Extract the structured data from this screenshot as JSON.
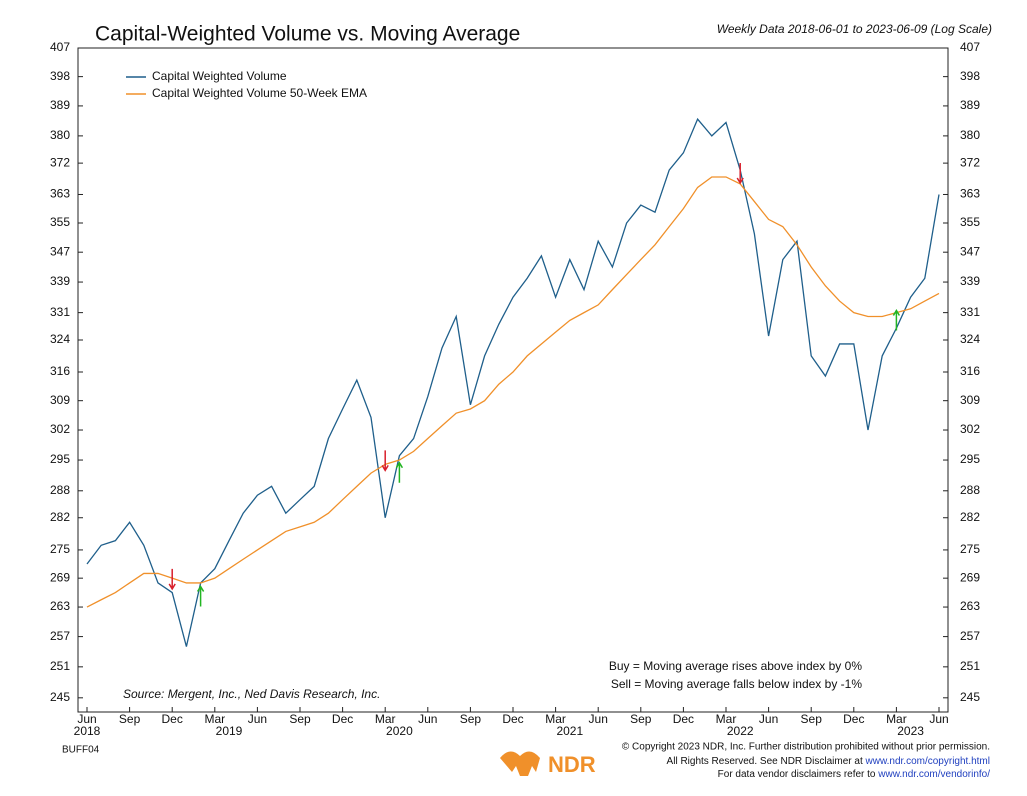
{
  "chart_data": {
    "type": "line",
    "title": "Capital-Weighted Volume vs. Moving Average",
    "subtitle": "Weekly Data 2018-06-01 to 2023-06-09 (Log Scale)",
    "log_scale": true,
    "x": [
      "2018-06",
      "2018-07",
      "2018-08",
      "2018-09",
      "2018-10",
      "2018-11",
      "2018-12",
      "2019-01",
      "2019-02",
      "2019-03",
      "2019-04",
      "2019-05",
      "2019-06",
      "2019-07",
      "2019-08",
      "2019-09",
      "2019-10",
      "2019-11",
      "2019-12",
      "2020-01",
      "2020-02",
      "2020-03",
      "2020-04",
      "2020-05",
      "2020-06",
      "2020-07",
      "2020-08",
      "2020-09",
      "2020-10",
      "2020-11",
      "2020-12",
      "2021-01",
      "2021-02",
      "2021-03",
      "2021-04",
      "2021-05",
      "2021-06",
      "2021-07",
      "2021-08",
      "2021-09",
      "2021-10",
      "2021-11",
      "2021-12",
      "2022-01",
      "2022-02",
      "2022-03",
      "2022-04",
      "2022-05",
      "2022-06",
      "2022-07",
      "2022-08",
      "2022-09",
      "2022-10",
      "2022-11",
      "2022-12",
      "2023-01",
      "2023-02",
      "2023-03",
      "2023-04",
      "2023-05",
      "2023-06"
    ],
    "series": [
      {
        "name": "Capital Weighted Volume",
        "color": "#1f5f8b",
        "values": [
          272,
          276,
          277,
          281,
          276,
          268,
          266,
          255,
          268,
          271,
          277,
          283,
          287,
          289,
          283,
          286,
          289,
          300,
          307,
          314,
          305,
          282,
          296,
          300,
          310,
          322,
          330,
          308,
          320,
          328,
          335,
          340,
          346,
          335,
          345,
          337,
          350,
          343,
          355,
          360,
          358,
          370,
          375,
          385,
          380,
          384,
          370,
          352,
          325,
          345,
          350,
          320,
          315,
          323,
          323,
          302,
          320,
          327,
          335,
          340,
          363
        ]
      },
      {
        "name": "Capital Weighted Volume 50-Week EMA",
        "color": "#f0902a",
        "values": [
          263,
          264.5,
          266,
          268,
          270,
          270,
          269,
          268,
          268,
          269,
          271,
          273,
          275,
          277,
          279,
          280,
          281,
          283,
          286,
          289,
          292,
          294,
          295,
          297,
          300,
          303,
          306,
          307,
          309,
          313,
          316,
          320,
          323,
          326,
          329,
          331,
          333,
          337,
          341,
          345,
          349,
          354,
          359,
          365,
          368,
          368,
          366,
          361,
          356,
          354,
          349,
          343,
          338,
          334,
          331,
          330,
          330,
          331,
          332,
          334,
          336
        ]
      }
    ],
    "sell_signals": {
      "color": "#d8202c",
      "x": [
        "2018-12",
        "2020-03",
        "2022-04"
      ],
      "values": [
        268,
        294,
        368
      ]
    },
    "buy_signals": {
      "color": "#22b522",
      "x": [
        "2019-02",
        "2020-04",
        "2023-03"
      ],
      "values": [
        266,
        293,
        330
      ]
    },
    "xlim": [
      "2018-06",
      "2023-06"
    ],
    "xticks": [
      {
        "value": "2018-06",
        "label": "Jun"
      },
      {
        "value": "2018-09",
        "label": "Sep"
      },
      {
        "value": "2018-12",
        "label": "Dec"
      },
      {
        "value": "2019-03",
        "label": "Mar"
      },
      {
        "value": "2019-06",
        "label": "Jun"
      },
      {
        "value": "2019-09",
        "label": "Sep"
      },
      {
        "value": "2019-12",
        "label": "Dec"
      },
      {
        "value": "2020-03",
        "label": "Mar"
      },
      {
        "value": "2020-06",
        "label": "Jun"
      },
      {
        "value": "2020-09",
        "label": "Sep"
      },
      {
        "value": "2020-12",
        "label": "Dec"
      },
      {
        "value": "2021-03",
        "label": "Mar"
      },
      {
        "value": "2021-06",
        "label": "Jun"
      },
      {
        "value": "2021-09",
        "label": "Sep"
      },
      {
        "value": "2021-12",
        "label": "Dec"
      },
      {
        "value": "2022-03",
        "label": "Mar"
      },
      {
        "value": "2022-06",
        "label": "Jun"
      },
      {
        "value": "2022-09",
        "label": "Sep"
      },
      {
        "value": "2022-12",
        "label": "Dec"
      },
      {
        "value": "2023-03",
        "label": "Mar"
      },
      {
        "value": "2023-06",
        "label": "Jun"
      }
    ],
    "year_labels": [
      {
        "value": "2018-06",
        "label": "2018"
      },
      {
        "value": "2019-04",
        "label": "2019"
      },
      {
        "value": "2020-04",
        "label": "2020"
      },
      {
        "value": "2021-04",
        "label": "2021"
      },
      {
        "value": "2022-04",
        "label": "2022"
      },
      {
        "value": "2023-04",
        "label": "2023"
      }
    ],
    "ylim": [
      242.3,
      407
    ],
    "yticks": [
      245,
      251,
      257,
      263,
      269,
      275,
      282,
      288,
      295,
      302,
      309,
      316,
      324,
      331,
      339,
      347,
      355,
      363,
      372,
      380,
      389,
      398,
      407
    ],
    "source": "Source:  Mergent, Inc., Ned Davis Research, Inc.",
    "rules": [
      "Buy = Moving average rises above index by 0%",
      "Sell = Moving average falls below index by -1%"
    ]
  },
  "footer": {
    "code": "BUFF04",
    "copyright": "© Copyright 2023 NDR, Inc. Further distribution prohibited without prior permission.",
    "rights": "All Rights Reserved. See NDR Disclaimer at",
    "rights_link": "www.ndr.com/copyright.html",
    "vendor": "For data vendor disclaimers refer to",
    "vendor_link": "www.ndr.com/vendorinfo/",
    "logo": "NDR"
  }
}
